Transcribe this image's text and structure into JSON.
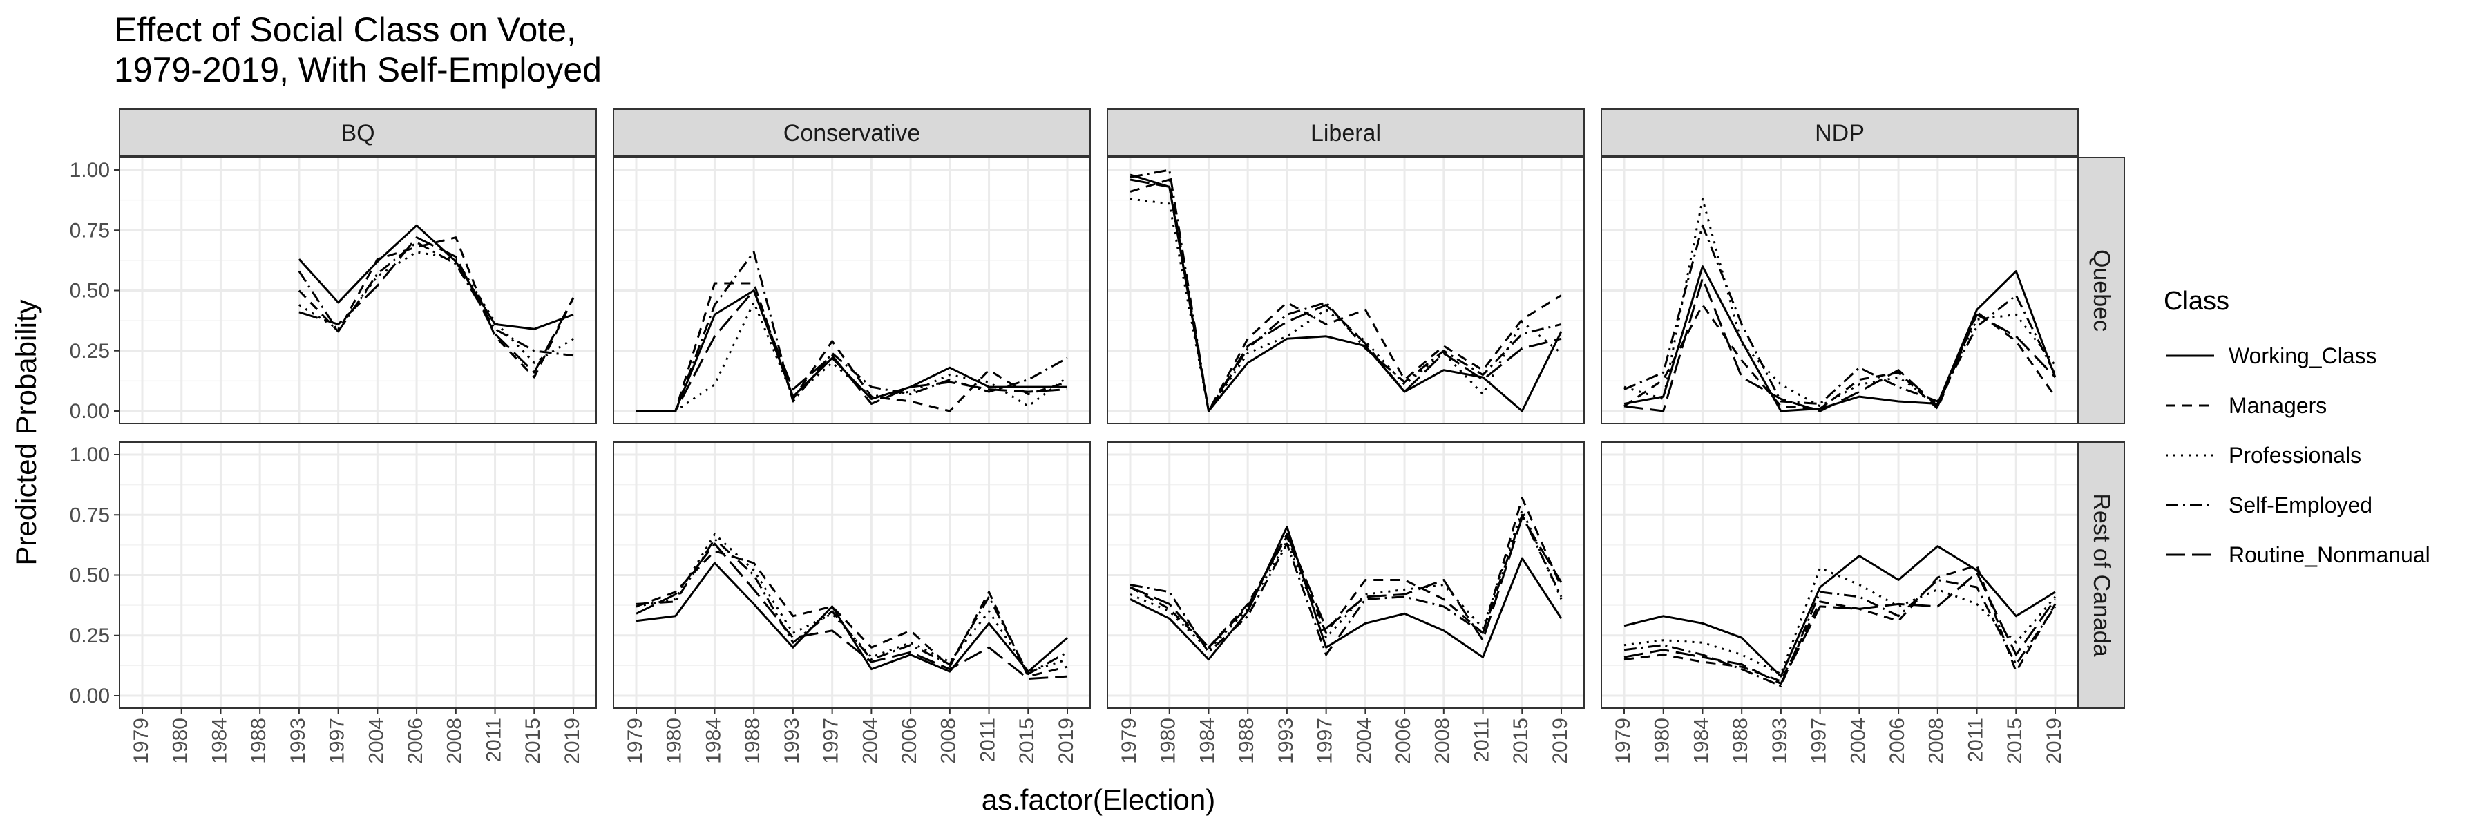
{
  "chart_data": {
    "type": "line",
    "title": "Effect of Social Class on Vote,\n1979-2019, With Self-Employed",
    "xlabel": "as.factor(Election)",
    "ylabel": "Predicted Probability",
    "ylim": [
      0,
      1
    ],
    "yticks": [
      "0.00",
      "0.25",
      "0.50",
      "0.75",
      "1.00"
    ],
    "x": [
      "1979",
      "1980",
      "1984",
      "1988",
      "1993",
      "1997",
      "2004",
      "2006",
      "2008",
      "2011",
      "2015",
      "2019"
    ],
    "grid": true,
    "legend_position": "right",
    "legend": {
      "title": "Class",
      "entries": [
        "Working_Class",
        "Managers",
        "Professionals",
        "Self-Employed",
        "Routine_Nonmanual"
      ]
    },
    "columns": [
      "BQ",
      "Conservative",
      "Liberal",
      "NDP"
    ],
    "rows": [
      "Quebec",
      "Rest of Canada"
    ],
    "panels": [
      {
        "row": "Quebec",
        "col": "BQ",
        "series": [
          {
            "name": "Working_Class",
            "values": [
              null,
              null,
              null,
              null,
              0.63,
              0.45,
              0.62,
              0.77,
              0.62,
              0.36,
              0.34,
              0.4
            ]
          },
          {
            "name": "Managers",
            "values": [
              null,
              null,
              null,
              null,
              0.5,
              0.33,
              0.63,
              0.68,
              0.72,
              0.31,
              0.14,
              0.47
            ]
          },
          {
            "name": "Professionals",
            "values": [
              null,
              null,
              null,
              null,
              0.44,
              0.34,
              0.56,
              0.66,
              0.63,
              0.37,
              0.2,
              0.3
            ]
          },
          {
            "name": "Self-Employed",
            "values": [
              null,
              null,
              null,
              null,
              0.58,
              0.33,
              0.57,
              0.7,
              0.61,
              0.34,
              0.25,
              0.23
            ]
          },
          {
            "name": "Routine_Nonmanual",
            "values": [
              null,
              null,
              null,
              null,
              0.41,
              0.36,
              0.52,
              0.72,
              0.64,
              0.32,
              0.16,
              0.47
            ]
          }
        ]
      },
      {
        "row": "Quebec",
        "col": "Conservative",
        "series": [
          {
            "name": "Working_Class",
            "values": [
              0.0,
              0.0,
              0.4,
              0.5,
              0.06,
              0.22,
              0.05,
              0.1,
              0.18,
              0.1,
              0.1,
              0.1
            ]
          },
          {
            "name": "Managers",
            "values": [
              0.0,
              0.0,
              0.53,
              0.53,
              0.05,
              0.29,
              0.06,
              0.04,
              0.0,
              0.17,
              0.07,
              0.12
            ]
          },
          {
            "name": "Professionals",
            "values": [
              0.0,
              0.0,
              0.11,
              0.45,
              0.06,
              0.2,
              0.06,
              0.08,
              0.15,
              0.12,
              0.02,
              0.14
            ]
          },
          {
            "name": "Self-Employed",
            "values": [
              0.0,
              0.0,
              0.44,
              0.66,
              0.04,
              0.24,
              0.1,
              0.07,
              0.13,
              0.08,
              0.13,
              0.22
            ]
          },
          {
            "name": "Routine_Nonmanual",
            "values": [
              0.0,
              0.0,
              0.31,
              0.5,
              0.09,
              0.23,
              0.03,
              0.1,
              0.12,
              0.09,
              0.08,
              0.09
            ]
          }
        ]
      },
      {
        "row": "Quebec",
        "col": "Liberal",
        "series": [
          {
            "name": "Working_Class",
            "values": [
              0.98,
              0.93,
              0.0,
              0.2,
              0.3,
              0.31,
              0.27,
              0.08,
              0.17,
              0.14,
              0.0,
              0.33
            ]
          },
          {
            "name": "Managers",
            "values": [
              0.91,
              0.96,
              0.0,
              0.3,
              0.45,
              0.36,
              0.42,
              0.13,
              0.27,
              0.17,
              0.38,
              0.48
            ]
          },
          {
            "name": "Professionals",
            "values": [
              0.88,
              0.86,
              0.0,
              0.24,
              0.31,
              0.42,
              0.29,
              0.11,
              0.24,
              0.07,
              0.37,
              0.24
            ]
          },
          {
            "name": "Self-Employed",
            "values": [
              0.97,
              1.0,
              0.0,
              0.26,
              0.4,
              0.45,
              0.26,
              0.12,
              0.25,
              0.15,
              0.32,
              0.36
            ]
          },
          {
            "name": "Routine_Nonmanual",
            "values": [
              0.96,
              0.93,
              0.0,
              0.27,
              0.37,
              0.44,
              0.28,
              0.08,
              0.24,
              0.13,
              0.26,
              0.3
            ]
          }
        ]
      },
      {
        "row": "Quebec",
        "col": "NDP",
        "series": [
          {
            "name": "Working_Class",
            "values": [
              0.03,
              0.06,
              0.6,
              0.29,
              0.0,
              0.01,
              0.06,
              0.04,
              0.03,
              0.42,
              0.58,
              0.14
            ]
          },
          {
            "name": "Managers",
            "values": [
              0.02,
              0.13,
              0.44,
              0.21,
              0.02,
              0.01,
              0.13,
              0.16,
              0.01,
              0.41,
              0.29,
              0.06
            ]
          },
          {
            "name": "Professionals",
            "values": [
              0.1,
              0.05,
              0.88,
              0.28,
              0.11,
              0.02,
              0.11,
              0.14,
              0.03,
              0.38,
              0.4,
              0.19
            ]
          },
          {
            "name": "Self-Employed",
            "values": [
              0.09,
              0.16,
              0.77,
              0.36,
              0.04,
              0.03,
              0.18,
              0.1,
              0.04,
              0.35,
              0.48,
              0.15
            ]
          },
          {
            "name": "Routine_Nonmanual",
            "values": [
              0.02,
              0.0,
              0.55,
              0.14,
              0.05,
              0.0,
              0.08,
              0.17,
              0.02,
              0.4,
              0.31,
              0.14
            ]
          }
        ]
      },
      {
        "row": "Rest of Canada",
        "col": "BQ",
        "series": []
      },
      {
        "row": "Rest of Canada",
        "col": "Conservative",
        "series": [
          {
            "name": "Working_Class",
            "values": [
              0.31,
              0.33,
              0.55,
              0.38,
              0.2,
              0.37,
              0.11,
              0.17,
              0.1,
              0.3,
              0.1,
              0.24
            ]
          },
          {
            "name": "Managers",
            "values": [
              0.37,
              0.43,
              0.6,
              0.55,
              0.33,
              0.37,
              0.2,
              0.27,
              0.12,
              0.43,
              0.08,
              0.12
            ]
          },
          {
            "name": "Professionals",
            "values": [
              0.37,
              0.4,
              0.67,
              0.52,
              0.26,
              0.34,
              0.16,
              0.22,
              0.14,
              0.35,
              0.1,
              0.15
            ]
          },
          {
            "name": "Self-Employed",
            "values": [
              0.38,
              0.39,
              0.65,
              0.5,
              0.22,
              0.35,
              0.15,
              0.21,
              0.13,
              0.41,
              0.09,
              0.18
            ]
          },
          {
            "name": "Routine_Nonmanual",
            "values": [
              0.34,
              0.42,
              0.63,
              0.44,
              0.24,
              0.27,
              0.14,
              0.18,
              0.11,
              0.2,
              0.07,
              0.08
            ]
          }
        ]
      },
      {
        "row": "Rest of Canada",
        "col": "Liberal",
        "series": [
          {
            "name": "Working_Class",
            "values": [
              0.4,
              0.32,
              0.15,
              0.35,
              0.7,
              0.2,
              0.3,
              0.34,
              0.27,
              0.16,
              0.57,
              0.32
            ]
          },
          {
            "name": "Managers",
            "values": [
              0.45,
              0.36,
              0.2,
              0.38,
              0.66,
              0.26,
              0.48,
              0.48,
              0.4,
              0.26,
              0.82,
              0.45
            ]
          },
          {
            "name": "Professionals",
            "values": [
              0.42,
              0.35,
              0.19,
              0.36,
              0.64,
              0.24,
              0.42,
              0.44,
              0.46,
              0.28,
              0.77,
              0.4
            ]
          },
          {
            "name": "Self-Employed",
            "values": [
              0.46,
              0.43,
              0.18,
              0.33,
              0.63,
              0.17,
              0.4,
              0.41,
              0.37,
              0.26,
              0.75,
              0.41
            ]
          },
          {
            "name": "Routine_Nonmanual",
            "values": [
              0.45,
              0.38,
              0.2,
              0.37,
              0.67,
              0.28,
              0.41,
              0.42,
              0.48,
              0.23,
              0.74,
              0.47
            ]
          }
        ]
      },
      {
        "row": "Rest of Canada",
        "col": "NDP",
        "series": [
          {
            "name": "Working_Class",
            "values": [
              0.29,
              0.33,
              0.3,
              0.24,
              0.08,
              0.45,
              0.58,
              0.48,
              0.62,
              0.52,
              0.33,
              0.43
            ]
          },
          {
            "name": "Managers",
            "values": [
              0.15,
              0.17,
              0.14,
              0.12,
              0.06,
              0.39,
              0.36,
              0.31,
              0.49,
              0.54,
              0.1,
              0.38
            ]
          },
          {
            "name": "Professionals",
            "values": [
              0.21,
              0.23,
              0.22,
              0.17,
              0.09,
              0.53,
              0.46,
              0.37,
              0.44,
              0.38,
              0.22,
              0.41
            ]
          },
          {
            "name": "Self-Employed",
            "values": [
              0.19,
              0.21,
              0.17,
              0.11,
              0.04,
              0.43,
              0.41,
              0.33,
              0.48,
              0.45,
              0.13,
              0.37
            ]
          },
          {
            "name": "Routine_Nonmanual",
            "values": [
              0.16,
              0.19,
              0.16,
              0.13,
              0.05,
              0.37,
              0.36,
              0.38,
              0.37,
              0.51,
              0.17,
              0.4
            ]
          }
        ]
      }
    ]
  }
}
